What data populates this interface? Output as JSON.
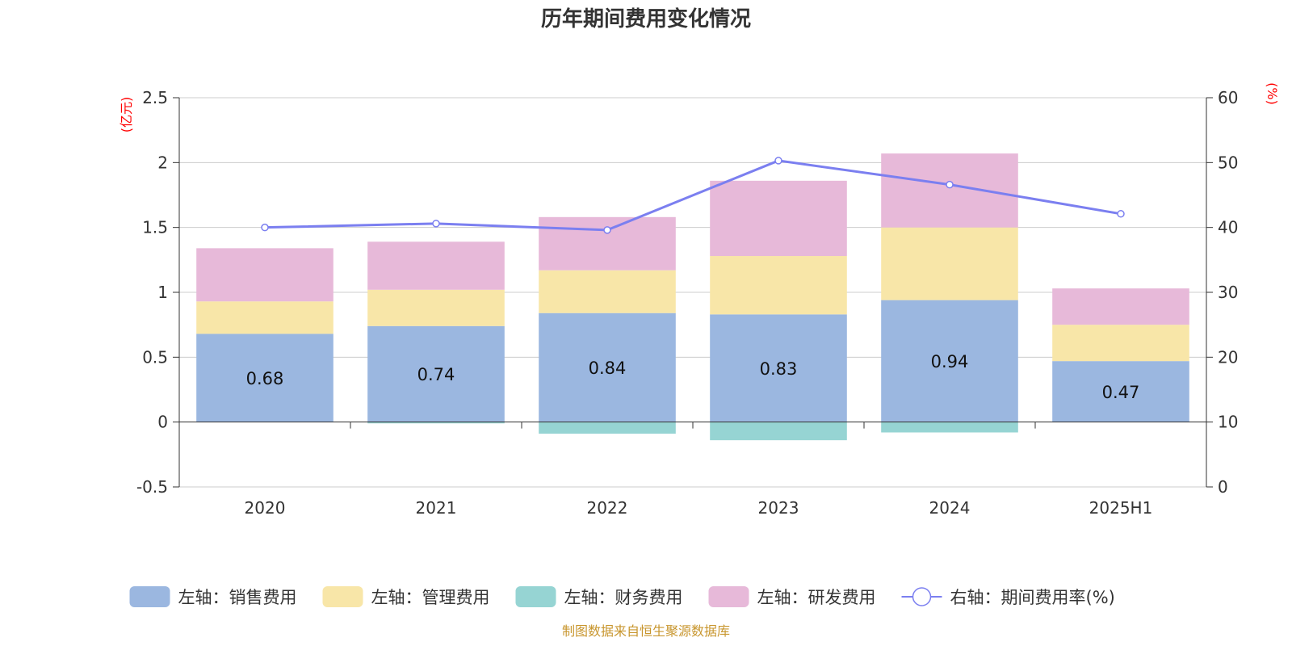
{
  "chart_data": {
    "type": "bar",
    "title": "历年期间费用变化情况",
    "categories": [
      "2020",
      "2021",
      "2022",
      "2023",
      "2024",
      "2025H1"
    ],
    "left_axis": {
      "unit": "(亿元)",
      "ylim": [
        -0.5,
        2.5
      ],
      "ticks": [
        "-0.5",
        "0",
        "0.5",
        "1",
        "1.5",
        "2",
        "2.5"
      ]
    },
    "right_axis": {
      "unit": "(%)",
      "ylim": [
        0,
        60
      ],
      "ticks": [
        "0",
        "10",
        "20",
        "30",
        "40",
        "50",
        "60"
      ]
    },
    "series": [
      {
        "name": "左轴：销售费用",
        "color": "#9bb7e0",
        "values": [
          0.68,
          0.74,
          0.84,
          0.83,
          0.94,
          0.47
        ],
        "labels": [
          "0.68",
          "0.74",
          "0.84",
          "0.83",
          "0.94",
          "0.47"
        ]
      },
      {
        "name": "左轴：管理费用",
        "color": "#f8e6a8",
        "values": [
          0.25,
          0.28,
          0.33,
          0.45,
          0.56,
          0.28
        ]
      },
      {
        "name": "左轴：财务费用",
        "color": "#96d4d3",
        "values": [
          0.0,
          -0.01,
          -0.09,
          -0.14,
          -0.08,
          0.0
        ]
      },
      {
        "name": "左轴：研发费用",
        "color": "#e7b9d9",
        "values": [
          0.41,
          0.37,
          0.41,
          0.58,
          0.57,
          0.28
        ]
      }
    ],
    "line": {
      "name": "右轴：期间费用率(%)",
      "color": "#7b7ff0",
      "values": [
        40.0,
        40.6,
        39.6,
        50.3,
        46.6,
        42.1
      ]
    },
    "grid": true,
    "legend_position": "bottom"
  },
  "source": "制图数据来自恒生聚源数据库"
}
